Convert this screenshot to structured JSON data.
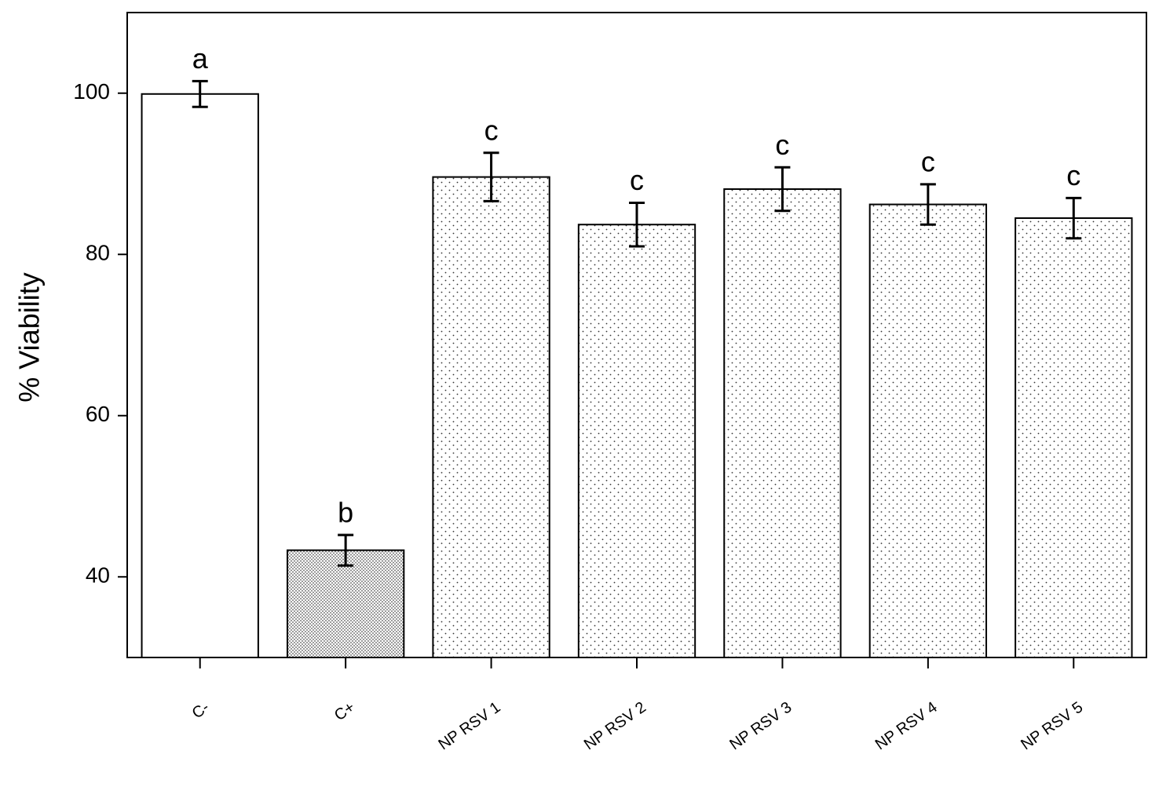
{
  "chart_data": {
    "type": "bar",
    "ylabel": "% Viability",
    "categories": [
      "C-",
      "C+",
      "NP RSV 1",
      "NP RSV 2",
      "NP RSV 3",
      "NP RSV 4",
      "NP RSV 5"
    ],
    "values": [
      99.9,
      43.3,
      89.6,
      83.7,
      88.1,
      86.2,
      84.5
    ],
    "errors": [
      1.6,
      1.9,
      3.0,
      2.7,
      2.7,
      2.5,
      2.5
    ],
    "annotations": [
      "a",
      "b",
      "c",
      "c",
      "c",
      "c",
      "c"
    ],
    "patterns": [
      "none",
      "dense",
      "sparse",
      "sparse",
      "sparse",
      "sparse",
      "sparse"
    ],
    "ylim": [
      30,
      110
    ],
    "yticks": [
      40,
      60,
      80,
      100
    ]
  }
}
